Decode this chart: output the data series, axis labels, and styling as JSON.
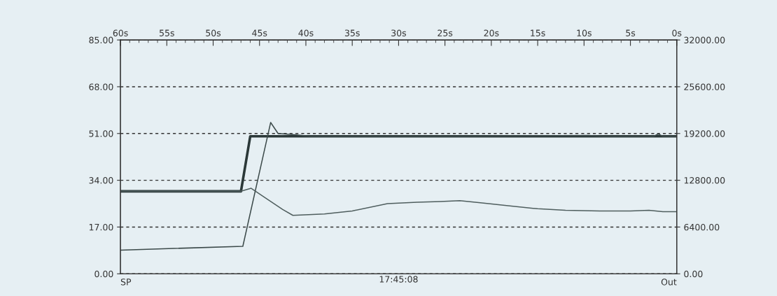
{
  "chart_data": {
    "type": "line",
    "xlabel": "17:45:08",
    "annotations": [
      "SP",
      "Out"
    ],
    "xlim": [
      60,
      0
    ],
    "xticks": [
      {
        "value": 60,
        "label": "60s"
      },
      {
        "value": 59,
        "label": null
      },
      {
        "value": 58,
        "label": null
      },
      {
        "value": 57,
        "label": null
      },
      {
        "value": 56,
        "label": null
      },
      {
        "value": 55,
        "label": "55s"
      },
      {
        "value": 54,
        "label": null
      },
      {
        "value": 53,
        "label": null
      },
      {
        "value": 52,
        "label": null
      },
      {
        "value": 51,
        "label": null
      },
      {
        "value": 50,
        "label": "50s"
      },
      {
        "value": 49,
        "label": null
      },
      {
        "value": 48,
        "label": null
      },
      {
        "value": 47,
        "label": null
      },
      {
        "value": 46,
        "label": null
      },
      {
        "value": 45,
        "label": "45s"
      },
      {
        "value": 44,
        "label": null
      },
      {
        "value": 43,
        "label": null
      },
      {
        "value": 42,
        "label": null
      },
      {
        "value": 41,
        "label": null
      },
      {
        "value": 40,
        "label": "40s"
      },
      {
        "value": 39,
        "label": null
      },
      {
        "value": 38,
        "label": null
      },
      {
        "value": 37,
        "label": null
      },
      {
        "value": 36,
        "label": null
      },
      {
        "value": 35,
        "label": "35s"
      },
      {
        "value": 34,
        "label": null
      },
      {
        "value": 33,
        "label": null
      },
      {
        "value": 32,
        "label": null
      },
      {
        "value": 31,
        "label": null
      },
      {
        "value": 30,
        "label": "30s"
      },
      {
        "value": 29,
        "label": null
      },
      {
        "value": 28,
        "label": null
      },
      {
        "value": 27,
        "label": null
      },
      {
        "value": 26,
        "label": null
      },
      {
        "value": 25,
        "label": "25s"
      },
      {
        "value": 24,
        "label": null
      },
      {
        "value": 23,
        "label": null
      },
      {
        "value": 22,
        "label": null
      },
      {
        "value": 21,
        "label": null
      },
      {
        "value": 20,
        "label": "20s"
      },
      {
        "value": 19,
        "label": null
      },
      {
        "value": 18,
        "label": null
      },
      {
        "value": 17,
        "label": null
      },
      {
        "value": 16,
        "label": null
      },
      {
        "value": 15,
        "label": "15s"
      },
      {
        "value": 14,
        "label": null
      },
      {
        "value": 13,
        "label": null
      },
      {
        "value": 12,
        "label": null
      },
      {
        "value": 11,
        "label": null
      },
      {
        "value": 10,
        "label": "10s"
      },
      {
        "value": 9,
        "label": null
      },
      {
        "value": 8,
        "label": null
      },
      {
        "value": 7,
        "label": null
      },
      {
        "value": 6,
        "label": null
      },
      {
        "value": 5,
        "label": "5s"
      },
      {
        "value": 4,
        "label": null
      },
      {
        "value": 3,
        "label": null
      },
      {
        "value": 2,
        "label": null
      },
      {
        "value": 1,
        "label": null
      },
      {
        "value": 0,
        "label": "0s"
      }
    ],
    "ylim": [
      0,
      85
    ],
    "yticks": [
      {
        "value": 0,
        "label": "0.00"
      },
      {
        "value": 17,
        "label": "17.00"
      },
      {
        "value": 34,
        "label": "34.00"
      },
      {
        "value": 51,
        "label": "51.00"
      },
      {
        "value": 68,
        "label": "68.00"
      },
      {
        "value": 85,
        "label": "85.00"
      }
    ],
    "y2lim": [
      0,
      32000
    ],
    "y2ticks": [
      {
        "value": 0,
        "label": "0.00"
      },
      {
        "value": 6400,
        "label": "6400.00"
      },
      {
        "value": 12800,
        "label": "12800.00"
      },
      {
        "value": 19200,
        "label": "19200.00"
      },
      {
        "value": 25600,
        "label": "25600.00"
      },
      {
        "value": 32000,
        "label": "32000.00"
      }
    ],
    "grid": "y",
    "line_style": "solid",
    "series": [
      {
        "color": "#2b3838",
        "x": [
          60,
          47,
          46,
          0
        ],
        "values": [
          30,
          30,
          50,
          50
        ]
      },
      {
        "color": "#3c4a4a",
        "x": [
          60,
          46.8,
          43.8,
          43,
          41,
          39.5,
          22.5,
          9.5,
          8,
          2.5,
          2,
          1.5,
          0
        ],
        "values": [
          8.6,
          10,
          55,
          51,
          50.5,
          50,
          50,
          50.3,
          50,
          50,
          50.8,
          50,
          50
        ]
      },
      {
        "color": "#4f5e5e",
        "axis": "y2",
        "x": [
          60,
          47,
          45.9,
          44.5,
          42.5,
          41.4,
          38,
          35,
          31.2,
          28,
          25.5,
          23.4,
          21,
          18,
          15,
          12,
          8.3,
          5,
          3,
          1.5,
          0
        ],
        "values": [
          11300,
          11300,
          11700,
          10500,
          8800,
          8000,
          8200,
          8600,
          9600,
          9800,
          9900,
          10000,
          9700,
          9300,
          8900,
          8700,
          8600,
          8600,
          8700,
          8500,
          8500
        ]
      }
    ]
  }
}
